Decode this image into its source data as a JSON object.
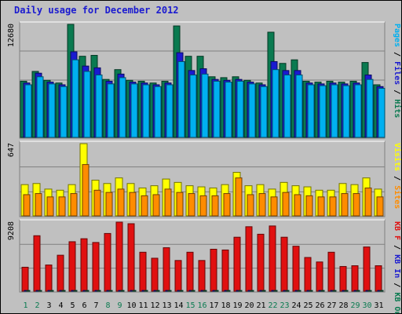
{
  "chart_title": "Daily usage for December 2012",
  "colors": {
    "background": "#c0c0c0",
    "title": "#1a1ad0",
    "pages": "#00b0f0",
    "files": "#1a1ad0",
    "hits": "#0a7a50",
    "sites": "#ff8c00",
    "visits": "#ffff00",
    "kbout": "#0a7a50",
    "kbin": "#1a1ad0",
    "kbf": "#e01010",
    "weekend_label": "#0a7a50",
    "weekday_label": "#000000"
  },
  "chart_data": [
    {
      "type": "bar",
      "panel": "top",
      "y_max_label": "12680",
      "ylim": [
        0,
        12680
      ],
      "right_labels": [
        "Pages",
        "Files",
        "Hits"
      ],
      "categories": [
        "1",
        "2",
        "3",
        "4",
        "5",
        "6",
        "7",
        "8",
        "9",
        "10",
        "11",
        "12",
        "13",
        "14",
        "15",
        "16",
        "17",
        "18",
        "19",
        "20",
        "21",
        "22",
        "23",
        "24",
        "25",
        "26",
        "27",
        "28",
        "29",
        "30",
        "31"
      ],
      "series": [
        {
          "name": "Hits",
          "values": [
            6300,
            7400,
            6400,
            6100,
            12680,
            9100,
            9200,
            6500,
            7600,
            6400,
            6300,
            6100,
            6300,
            12500,
            9100,
            9100,
            6800,
            6700,
            6800,
            6400,
            6100,
            11800,
            8300,
            8700,
            6300,
            6200,
            6300,
            6200,
            6300,
            8400,
            5900
          ]
        },
        {
          "name": "Files",
          "values": [
            6100,
            7200,
            6200,
            5900,
            9600,
            8000,
            7800,
            6300,
            7100,
            6200,
            6100,
            5900,
            6100,
            9500,
            7500,
            7700,
            6500,
            6400,
            6500,
            6200,
            5900,
            8500,
            7500,
            7500,
            6100,
            6000,
            6100,
            6000,
            6100,
            7000,
            5700
          ]
        },
        {
          "name": "Pages",
          "values": [
            5900,
            6800,
            6000,
            5700,
            8700,
            7400,
            7000,
            6000,
            6700,
            6000,
            5900,
            5700,
            5900,
            8500,
            7000,
            7100,
            6300,
            6200,
            6300,
            6000,
            5700,
            7600,
            7000,
            7000,
            5900,
            5800,
            5900,
            5800,
            5900,
            6500,
            5500
          ]
        }
      ]
    },
    {
      "type": "bar",
      "panel": "middle",
      "y_max_label": "647",
      "ylim": [
        0,
        647
      ],
      "right_labels": [
        "Visits",
        "Sites"
      ],
      "categories": [
        "1",
        "2",
        "3",
        "4",
        "5",
        "6",
        "7",
        "8",
        "9",
        "10",
        "11",
        "12",
        "13",
        "14",
        "15",
        "16",
        "17",
        "18",
        "19",
        "20",
        "21",
        "22",
        "23",
        "24",
        "25",
        "26",
        "27",
        "28",
        "29",
        "30",
        "31"
      ],
      "series": [
        {
          "name": "Visits",
          "values": [
            280,
            290,
            240,
            230,
            280,
            647,
            320,
            290,
            340,
            290,
            250,
            270,
            330,
            300,
            270,
            260,
            250,
            280,
            390,
            270,
            280,
            240,
            300,
            270,
            260,
            230,
            230,
            290,
            280,
            340,
            240
          ]
        },
        {
          "name": "Sites",
          "values": [
            190,
            200,
            170,
            170,
            200,
            460,
            230,
            210,
            240,
            210,
            180,
            190,
            240,
            210,
            200,
            180,
            180,
            200,
            340,
            190,
            200,
            170,
            210,
            190,
            180,
            170,
            170,
            200,
            200,
            250,
            170
          ]
        }
      ]
    },
    {
      "type": "bar",
      "panel": "bottom",
      "y_max_label": "9208",
      "ylim": [
        0,
        9208
      ],
      "right_labels": [
        "KB F",
        "KB In",
        "KB Out"
      ],
      "categories": [
        "1",
        "2",
        "3",
        "4",
        "5",
        "6",
        "7",
        "8",
        "9",
        "10",
        "11",
        "12",
        "13",
        "14",
        "15",
        "16",
        "17",
        "18",
        "19",
        "20",
        "21",
        "22",
        "23",
        "24",
        "25",
        "26",
        "27",
        "28",
        "29",
        "30",
        "31"
      ],
      "series": [
        {
          "name": "KB F",
          "values": [
            3200,
            7400,
            3500,
            4800,
            6600,
            7000,
            6500,
            7700,
            9208,
            9000,
            5200,
            4400,
            5800,
            4100,
            5200,
            4100,
            5600,
            5500,
            7200,
            8600,
            7600,
            8700,
            7200,
            6000,
            4500,
            3900,
            5200,
            3300,
            3400,
            5900,
            3400
          ]
        },
        {
          "name": "KB In",
          "values": [
            60,
            70,
            60,
            60,
            80,
            80,
            80,
            70,
            90,
            90,
            60,
            60,
            70,
            60,
            60,
            60,
            60,
            60,
            70,
            80,
            70,
            80,
            70,
            60,
            60,
            60,
            60,
            60,
            60,
            70,
            60
          ]
        },
        {
          "name": "KB Out",
          "values": [
            30,
            40,
            30,
            30,
            40,
            40,
            40,
            40,
            50,
            50,
            30,
            30,
            40,
            30,
            30,
            30,
            30,
            30,
            40,
            40,
            40,
            40,
            40,
            30,
            30,
            30,
            30,
            30,
            30,
            40,
            30
          ]
        }
      ]
    }
  ],
  "weekend_days": [
    1,
    2,
    8,
    9,
    15,
    16,
    22,
    23,
    29,
    30
  ]
}
